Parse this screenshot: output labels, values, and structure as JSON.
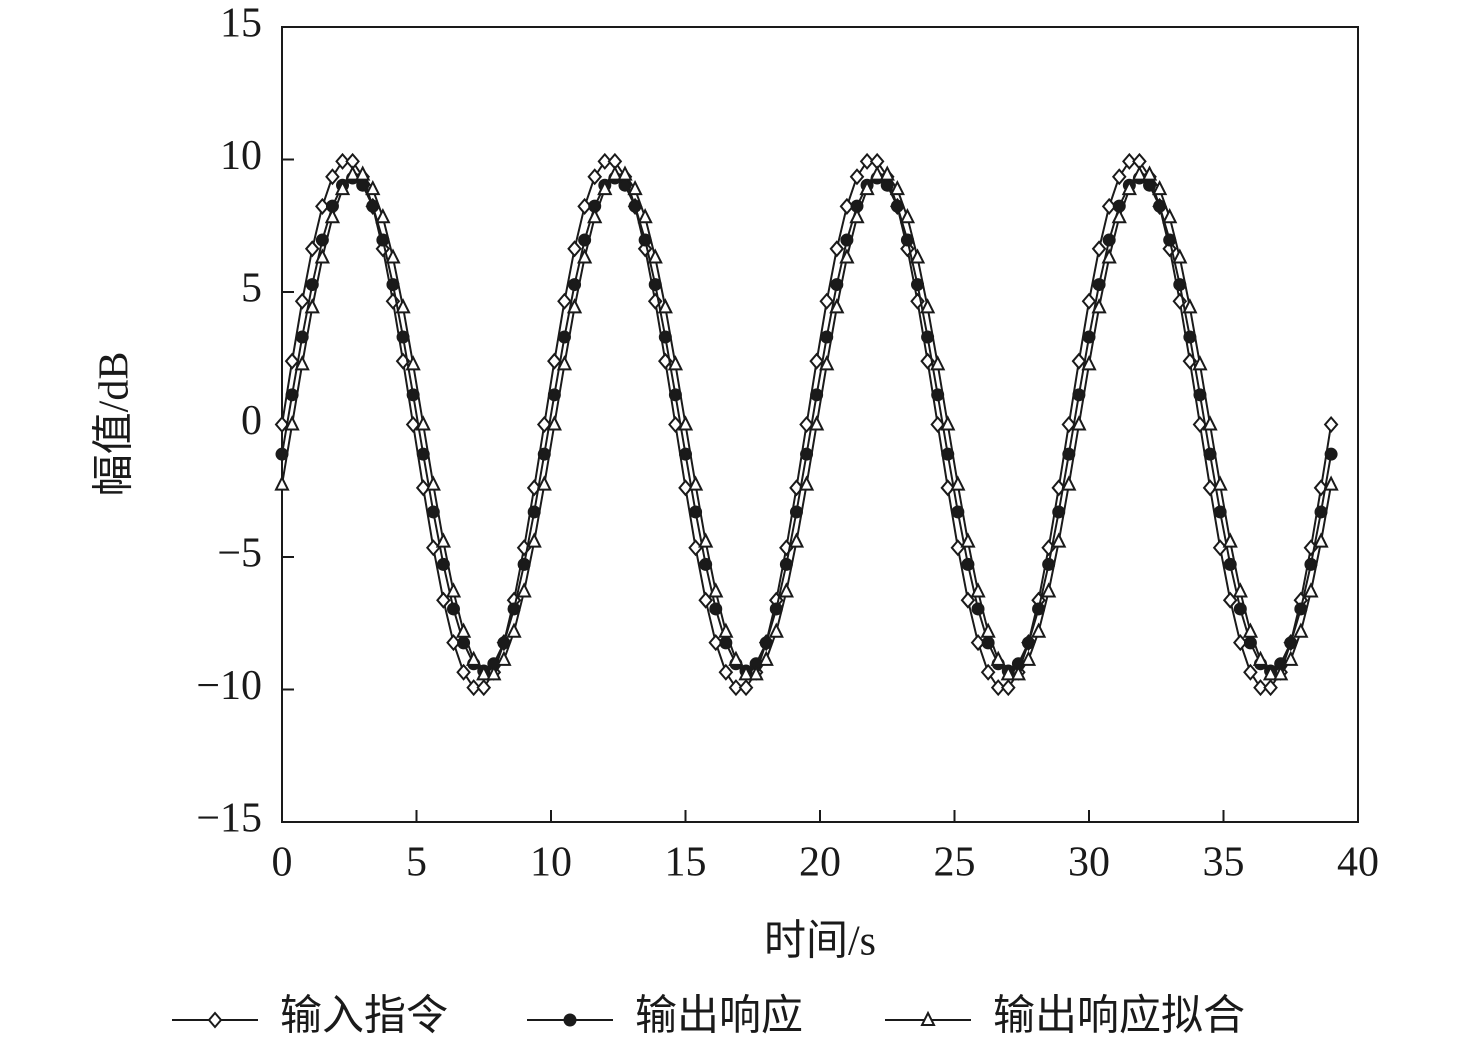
{
  "chart_data": {
    "type": "line",
    "x_label": "时间/s",
    "y_label": "幅值/dB",
    "xlim": [
      0,
      40
    ],
    "xticks": [
      0,
      5,
      10,
      15,
      20,
      25,
      30,
      35,
      40
    ],
    "ylim": [
      -15,
      15
    ],
    "yticks": [
      {
        "value": -15,
        "label": "−15"
      },
      {
        "value": -10,
        "label": "−10"
      },
      {
        "value": -5,
        "label": "−5"
      },
      0,
      5,
      10,
      15
    ],
    "grid": false,
    "legend": "bottom",
    "x": [
      0,
      0.375,
      0.75,
      1.125,
      1.5,
      1.875,
      2.25,
      2.625,
      3,
      3.375,
      3.75,
      4.125,
      4.5,
      4.875,
      5.25,
      5.625,
      6,
      6.375,
      6.75,
      7.125,
      7.5,
      7.875,
      8.25,
      8.625,
      9,
      9.375,
      9.75,
      10.125,
      10.5,
      10.875,
      11.25,
      11.625,
      12,
      12.375,
      12.75,
      13.125,
      13.5,
      13.875,
      14.25,
      14.625,
      15,
      15.375,
      15.75,
      16.125,
      16.5,
      16.875,
      17.25,
      17.625,
      18,
      18.375,
      18.75,
      19.125,
      19.5,
      19.875,
      20.25,
      20.625,
      21,
      21.375,
      21.75,
      22.125,
      22.5,
      22.875,
      23.25,
      23.625,
      24,
      24.375,
      24.75,
      25.125,
      25.5,
      25.875,
      26.25,
      26.625,
      27,
      27.375,
      27.75,
      28.125,
      28.5,
      28.875,
      29.25,
      29.625,
      30,
      30.375,
      30.75,
      31.125,
      31.5,
      31.875,
      32.25,
      32.625,
      33,
      33.375,
      33.75,
      34.125,
      34.5,
      34.875,
      35.25,
      35.625,
      36,
      36.375,
      36.75,
      37.125,
      37.5,
      37.875,
      38.25,
      38.625,
      39
    ],
    "series": [
      {
        "name": "输入指令",
        "color": "#1a1a1a",
        "marker": "diamond",
        "values": [
          0,
          2.39,
          4.65,
          6.63,
          8.23,
          9.35,
          9.93,
          9.93,
          9.35,
          8.23,
          6.63,
          4.65,
          2.39,
          0,
          -2.39,
          -4.65,
          -6.63,
          -8.23,
          -9.35,
          -9.93,
          -9.93,
          -9.35,
          -8.23,
          -6.63,
          -4.65,
          -2.39,
          0,
          2.39,
          4.65,
          6.63,
          8.23,
          9.35,
          9.93,
          9.93,
          9.35,
          8.23,
          6.63,
          4.65,
          2.39,
          0,
          -2.39,
          -4.65,
          -6.63,
          -8.23,
          -9.35,
          -9.93,
          -9.93,
          -9.35,
          -8.23,
          -6.63,
          -4.65,
          -2.39,
          0,
          2.39,
          4.65,
          6.63,
          8.23,
          9.35,
          9.93,
          9.93,
          9.35,
          8.23,
          6.63,
          4.65,
          2.39,
          0,
          -2.39,
          -4.65,
          -6.63,
          -8.23,
          -9.35,
          -9.93,
          -9.93,
          -9.35,
          -8.23,
          -6.63,
          -4.65,
          -2.39,
          0,
          2.39,
          4.65,
          6.63,
          8.23,
          9.35,
          9.93,
          9.93,
          9.35,
          8.23,
          6.63,
          4.65,
          2.39,
          0,
          -2.39,
          -4.65,
          -6.63,
          -8.23,
          -9.35,
          -9.93,
          -9.93,
          -9.35,
          -8.23,
          -6.63,
          -4.65,
          -2.39,
          0
        ]
      },
      {
        "name": "输出响应",
        "color": "#1a1a1a",
        "marker": "circle",
        "values": [
          -1.12,
          1.12,
          3.3,
          5.28,
          6.96,
          8.24,
          9.03,
          9.3,
          9.03,
          8.24,
          6.96,
          5.28,
          3.3,
          1.12,
          -1.12,
          -3.3,
          -5.28,
          -6.96,
          -8.24,
          -9.03,
          -9.3,
          -9.03,
          -8.24,
          -6.96,
          -5.28,
          -3.3,
          -1.12,
          1.12,
          3.3,
          5.28,
          6.96,
          8.24,
          9.03,
          9.3,
          9.03,
          8.24,
          6.96,
          5.28,
          3.3,
          1.12,
          -1.12,
          -3.3,
          -5.28,
          -6.96,
          -8.24,
          -9.03,
          -9.3,
          -9.03,
          -8.24,
          -6.96,
          -5.28,
          -3.3,
          -1.12,
          1.12,
          3.3,
          5.28,
          6.96,
          8.24,
          9.03,
          9.3,
          9.03,
          8.24,
          6.96,
          5.28,
          3.3,
          1.12,
          -1.12,
          -3.3,
          -5.28,
          -6.96,
          -8.24,
          -9.03,
          -9.3,
          -9.03,
          -8.24,
          -6.96,
          -5.28,
          -3.3,
          -1.12,
          1.12,
          3.3,
          5.28,
          6.96,
          8.24,
          9.03,
          9.3,
          9.03,
          8.24,
          6.96,
          5.28,
          3.3,
          1.12,
          -1.12,
          -3.3,
          -5.28,
          -6.96,
          -8.24,
          -9.03,
          -9.3,
          -9.03,
          -8.24,
          -6.96,
          -5.28,
          -3.3,
          -1.12
        ]
      },
      {
        "name": "输出响应拟合",
        "color": "#1a1a1a",
        "marker": "triangle",
        "values": [
          -2.27,
          0,
          2.27,
          4.42,
          6.3,
          7.82,
          8.88,
          9.43,
          9.43,
          8.88,
          7.82,
          6.3,
          4.42,
          2.27,
          0,
          -2.27,
          -4.42,
          -6.3,
          -7.82,
          -8.88,
          -9.43,
          -9.43,
          -8.88,
          -7.82,
          -6.3,
          -4.42,
          -2.27,
          0,
          2.27,
          4.42,
          6.3,
          7.82,
          8.88,
          9.43,
          9.43,
          8.88,
          7.82,
          6.3,
          4.42,
          2.27,
          0,
          -2.27,
          -4.42,
          -6.3,
          -7.82,
          -8.88,
          -9.43,
          -9.43,
          -8.88,
          -7.82,
          -6.3,
          -4.42,
          -2.27,
          0,
          2.27,
          4.42,
          6.3,
          7.82,
          8.88,
          9.43,
          9.43,
          8.88,
          7.82,
          6.3,
          4.42,
          2.27,
          0,
          -2.27,
          -4.42,
          -6.3,
          -7.82,
          -8.88,
          -9.43,
          -9.43,
          -8.88,
          -7.82,
          -6.3,
          -4.42,
          -2.27,
          0,
          2.27,
          4.42,
          6.3,
          7.82,
          8.88,
          9.43,
          9.43,
          8.88,
          7.82,
          6.3,
          4.42,
          2.27,
          0,
          -2.27,
          -4.42,
          -6.3,
          -7.82,
          -8.88,
          -9.43,
          -9.43,
          -8.88,
          -7.82,
          -6.3,
          -4.42,
          -2.27
        ]
      }
    ]
  }
}
